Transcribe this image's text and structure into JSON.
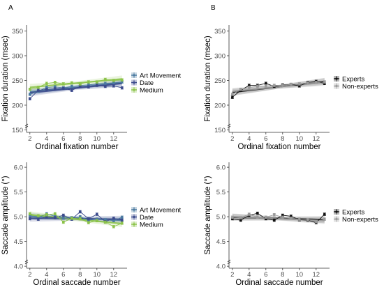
{
  "panels": {
    "left": "A",
    "right": "B"
  },
  "colors": {
    "art": "#4b7aa0",
    "date": "#3b4a8c",
    "medium": "#8cc34a",
    "experts": "#111111",
    "nonexperts": "#9a9a9a"
  },
  "chart_data": [
    {
      "type": "line",
      "panel": "A",
      "xlabel": "Ordinal fixation number",
      "ylabel": "Fixation duration (msec)",
      "x_ticks": [
        "2",
        "4",
        "6",
        "8",
        "10",
        "12"
      ],
      "y_ticks": [
        "150",
        "200",
        "250",
        "300",
        "350"
      ],
      "xlim": [
        1.6,
        13.6
      ],
      "ylim": [
        145,
        362
      ],
      "legend_position": "right",
      "x": [
        2,
        3,
        4,
        5,
        6,
        7,
        8,
        9,
        10,
        11,
        12,
        13
      ],
      "series": [
        {
          "name": "Art Movement",
          "color": "#4b7aa0",
          "values": [
            222,
            228,
            236,
            237,
            235,
            238,
            240,
            241,
            243,
            244,
            245,
            247
          ],
          "fit": [
            227,
            245
          ]
        },
        {
          "name": "Date",
          "color": "#3b4a8c",
          "values": [
            213,
            230,
            232,
            233,
            234,
            230,
            238,
            237,
            240,
            238,
            239,
            235
          ],
          "fit": [
            225,
            244
          ]
        },
        {
          "name": "Medium",
          "color": "#8cc34a",
          "values": [
            232,
            236,
            244,
            246,
            243,
            245,
            243,
            247,
            247,
            252,
            250,
            251
          ],
          "fit": [
            236,
            253
          ]
        }
      ]
    },
    {
      "type": "line",
      "panel": "B",
      "xlabel": "Ordinal fixation number",
      "ylabel": "Fixation duration (msec)",
      "x_ticks": [
        "2",
        "4",
        "6",
        "8",
        "10",
        "12"
      ],
      "y_ticks": [
        "150",
        "200",
        "250",
        "300",
        "350"
      ],
      "xlim": [
        1.6,
        13.6
      ],
      "ylim": [
        145,
        362
      ],
      "legend_position": "right",
      "x": [
        2,
        3,
        4,
        5,
        6,
        7,
        8,
        9,
        10,
        11,
        12,
        13
      ],
      "series": [
        {
          "name": "Experts",
          "color": "#111111",
          "values": [
            216,
            230,
            240,
            240,
            244,
            238,
            241,
            242,
            239,
            246,
            248,
            244
          ],
          "fit": [
            226,
            248
          ]
        },
        {
          "name": "Non-experts",
          "color": "#9a9a9a",
          "values": [
            222,
            232,
            236,
            238,
            239,
            240,
            240,
            242,
            243,
            245,
            246,
            247
          ],
          "fit": [
            228,
            246
          ]
        }
      ]
    },
    {
      "type": "line",
      "panel": "A",
      "xlabel": "Ordinal saccade number",
      "ylabel": "Saccade amplitude (°)",
      "x_ticks": [
        "2",
        "4",
        "6",
        "8",
        "10",
        "12"
      ],
      "y_ticks": [
        "4.0",
        "4.5",
        "5.0",
        "5.5",
        "6.0"
      ],
      "xlim": [
        1.6,
        13.6
      ],
      "ylim": [
        3.96,
        6.1
      ],
      "legend_position": "right",
      "x": [
        2,
        3,
        4,
        5,
        6,
        7,
        8,
        9,
        10,
        11,
        12,
        13
      ],
      "series": [
        {
          "name": "Art Movement",
          "color": "#4b7aa0",
          "values": [
            5.02,
            4.98,
            5.06,
            5.01,
            4.97,
            4.98,
            5.0,
            4.93,
            4.95,
            4.94,
            4.92,
            4.99
          ],
          "fit": [
            5.01,
            4.93
          ]
        },
        {
          "name": "Date",
          "color": "#3b4a8c",
          "values": [
            4.96,
            4.95,
            5.0,
            4.98,
            5.03,
            4.95,
            5.1,
            4.96,
            5.05,
            4.9,
            4.97,
            4.93
          ],
          "fit": [
            4.97,
            4.95
          ]
        },
        {
          "name": "Medium",
          "color": "#8cc34a",
          "values": [
            5.06,
            5.02,
            5.04,
            5.06,
            4.89,
            4.97,
            4.96,
            4.88,
            4.92,
            4.89,
            4.8,
            4.87
          ],
          "fit": [
            5.04,
            4.86
          ]
        }
      ]
    },
    {
      "type": "line",
      "panel": "B",
      "xlabel": "Ordinal saccade number",
      "ylabel": "Saccade amplitude (°)",
      "x_ticks": [
        "2",
        "4",
        "6",
        "8",
        "10",
        "12"
      ],
      "y_ticks": [
        "4.0",
        "4.5",
        "5.0",
        "5.5",
        "6.0"
      ],
      "xlim": [
        1.6,
        13.6
      ],
      "ylim": [
        3.96,
        6.1
      ],
      "legend_position": "right",
      "x": [
        2,
        3,
        4,
        5,
        6,
        7,
        8,
        9,
        10,
        11,
        12,
        13
      ],
      "series": [
        {
          "name": "Experts",
          "color": "#111111",
          "values": [
            4.96,
            4.93,
            5.03,
            5.07,
            4.96,
            4.93,
            5.03,
            5.01,
            4.94,
            4.93,
            4.88,
            5.05
          ],
          "fit": [
            4.99,
            4.94
          ]
        },
        {
          "name": "Non-experts",
          "color": "#9a9a9a",
          "values": [
            4.99,
            4.98,
            5.05,
            4.99,
            4.99,
            5.04,
            4.99,
            4.97,
            4.95,
            4.94,
            4.9,
            4.95
          ],
          "fit": [
            5.0,
            4.92
          ]
        }
      ]
    }
  ]
}
